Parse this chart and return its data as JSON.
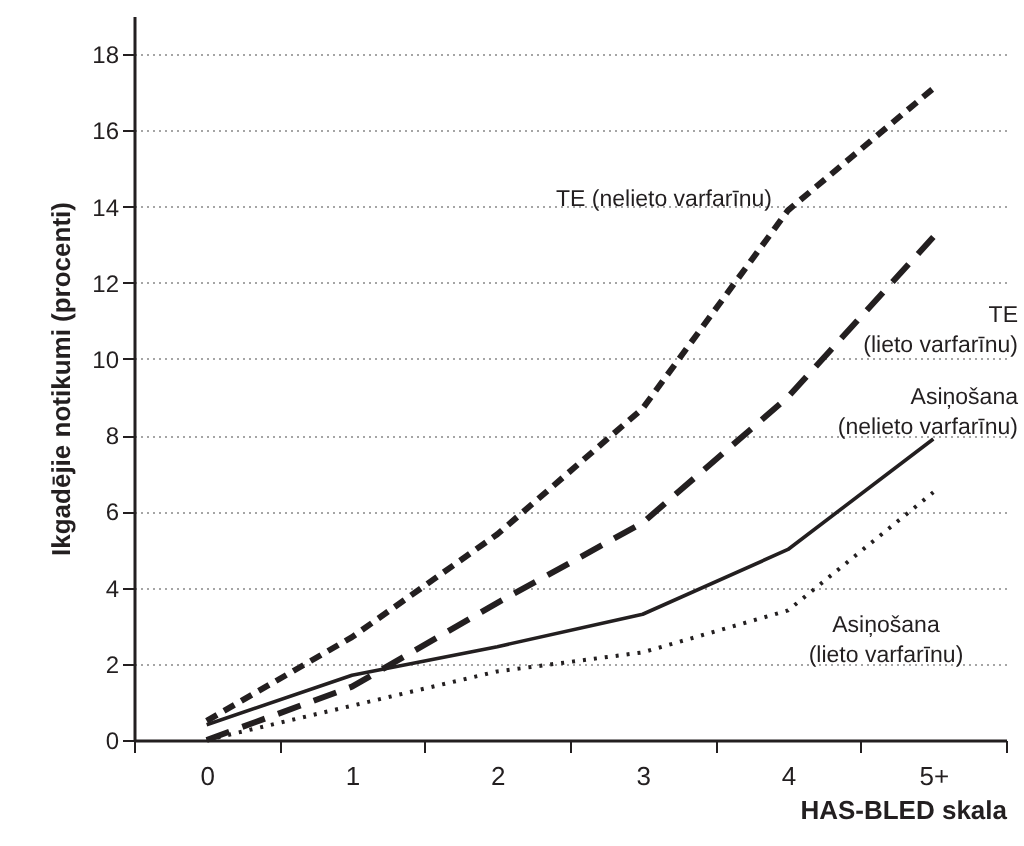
{
  "chart_data": {
    "type": "line",
    "xlabel": "HAS-BLED skala",
    "ylabel": "Ikgadējie notikumi (procenti)",
    "categories": [
      "0",
      "1",
      "2",
      "3",
      "4",
      "5+"
    ],
    "series": [
      {
        "name": "TE (nelieto varfarīnu)",
        "color": "#231f20",
        "line_style": "dashed",
        "values": [
          0.5,
          2.7,
          5.4,
          8.7,
          13.9,
          17.1
        ]
      },
      {
        "name": "TE (lieto varfarīnu)",
        "color": "#231f20",
        "line_style": "dashed",
        "values": [
          0,
          1.4,
          3.6,
          5.7,
          9.0,
          13.2
        ]
      },
      {
        "name": "Asiņošana (nelieto varfarīnu)",
        "color": "#231f20",
        "line_style": "solid",
        "values": [
          0.4,
          1.7,
          2.45,
          3.3,
          5.0,
          7.9
        ]
      },
      {
        "name": "Asiņošana (lieto varfarīnu)",
        "color": "#231f20",
        "line_style": "dotted",
        "values": [
          0,
          0.9,
          1.8,
          2.3,
          3.4,
          6.5
        ]
      }
    ],
    "ylim": [
      0,
      19
    ],
    "yticks": [
      0,
      2,
      4,
      6,
      8,
      10,
      12,
      14,
      16,
      18
    ],
    "grid": "y",
    "legend": false,
    "marker": "none"
  }
}
